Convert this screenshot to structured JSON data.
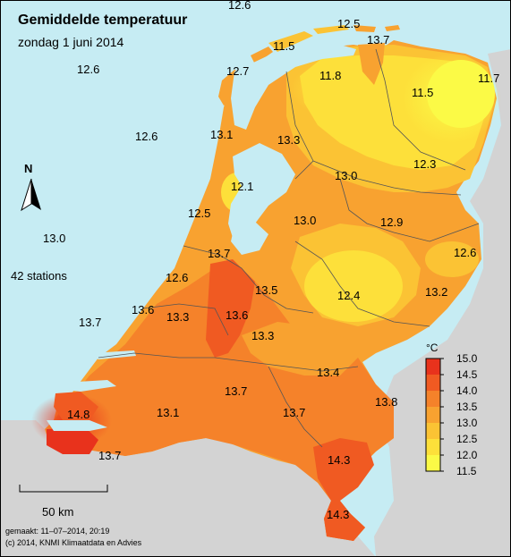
{
  "title": "Gemiddelde temperatuur",
  "subtitle": "zondag 1 juni 2014",
  "north_label": "N",
  "stations_label": "42 stations",
  "scale_label": "50 km",
  "made_label": "gemaakt: 11–07–2014, 20:19",
  "copyright_label": "(c) 2014, KNMI Klimaatdata en Advies",
  "legend": {
    "unit": "°C",
    "ticks": [
      "15.0",
      "14.5",
      "14.0",
      "13.5",
      "13.0",
      "12.5",
      "12.0",
      "11.5"
    ],
    "colors": [
      "#e8321c",
      "#f05a22",
      "#f5822a",
      "#f8a230",
      "#fbc334",
      "#fde03a",
      "#fbfa46"
    ]
  },
  "values": [
    {
      "id": "v-12-6-top",
      "text": "12.6"
    },
    {
      "id": "v-12-5-top",
      "text": "12.5"
    },
    {
      "id": "v-11-5-terschelling",
      "text": "11.5"
    },
    {
      "id": "v-13-7-schiermonnikoog",
      "text": "13.7"
    },
    {
      "id": "v-12-6-sea-north",
      "text": "12.6"
    },
    {
      "id": "v-12-7-texel",
      "text": "12.7"
    },
    {
      "id": "v-11-8-friesland",
      "text": "11.8"
    },
    {
      "id": "v-11-5-groningen",
      "text": "11.5"
    },
    {
      "id": "v-11-7-nieuw-beerta",
      "text": "11.7"
    },
    {
      "id": "v-12-6-sea-mid",
      "text": "12.6"
    },
    {
      "id": "v-13-1-den-helder",
      "text": "13.1"
    },
    {
      "id": "v-13-3-stavoren",
      "text": "13.3"
    },
    {
      "id": "v-13-0-drenthe",
      "text": "13.0"
    },
    {
      "id": "v-12-3-hoogeveen",
      "text": "12.3"
    },
    {
      "id": "v-12-1-ijsselmeer",
      "text": "12.1"
    },
    {
      "id": "v-12-5-berkhout",
      "text": "12.5"
    },
    {
      "id": "v-13-0-sea-west",
      "text": "13.0"
    },
    {
      "id": "v-13-0-lelystad",
      "text": "13.0"
    },
    {
      "id": "v-12-9-overijssel",
      "text": "12.9"
    },
    {
      "id": "v-12-6-twenthe",
      "text": "12.6"
    },
    {
      "id": "v-13-7-amsterdam",
      "text": "13.7"
    },
    {
      "id": "v-12-6-noordwijk",
      "text": "12.6"
    },
    {
      "id": "v-13-5-de-bilt",
      "text": "13.5"
    },
    {
      "id": "v-12-4-deelen",
      "text": "12.4"
    },
    {
      "id": "v-13-2-hupsel",
      "text": "13.2"
    },
    {
      "id": "v-13-7-sea-south",
      "text": "13.7"
    },
    {
      "id": "v-13-6-hoek",
      "text": "13.6"
    },
    {
      "id": "v-13-3-rotterdam",
      "text": "13.3"
    },
    {
      "id": "v-13-6-cabauw",
      "text": "13.6"
    },
    {
      "id": "v-13-3-herwijnen",
      "text": "13.3"
    },
    {
      "id": "v-13-4-volkel",
      "text": "13.4"
    },
    {
      "id": "v-13-7-gilze",
      "text": "13.7"
    },
    {
      "id": "v-13-8-arcen",
      "text": "13.8"
    },
    {
      "id": "v-14-8-vlissingen",
      "text": "14.8"
    },
    {
      "id": "v-13-1-woensdrecht",
      "text": "13.1"
    },
    {
      "id": "v-13-7-eindhoven",
      "text": "13.7"
    },
    {
      "id": "v-13-7-westdorpe",
      "text": "13.7"
    },
    {
      "id": "v-14-3-ell",
      "text": "14.3"
    },
    {
      "id": "v-14-3-maastricht",
      "text": "14.3"
    }
  ]
}
